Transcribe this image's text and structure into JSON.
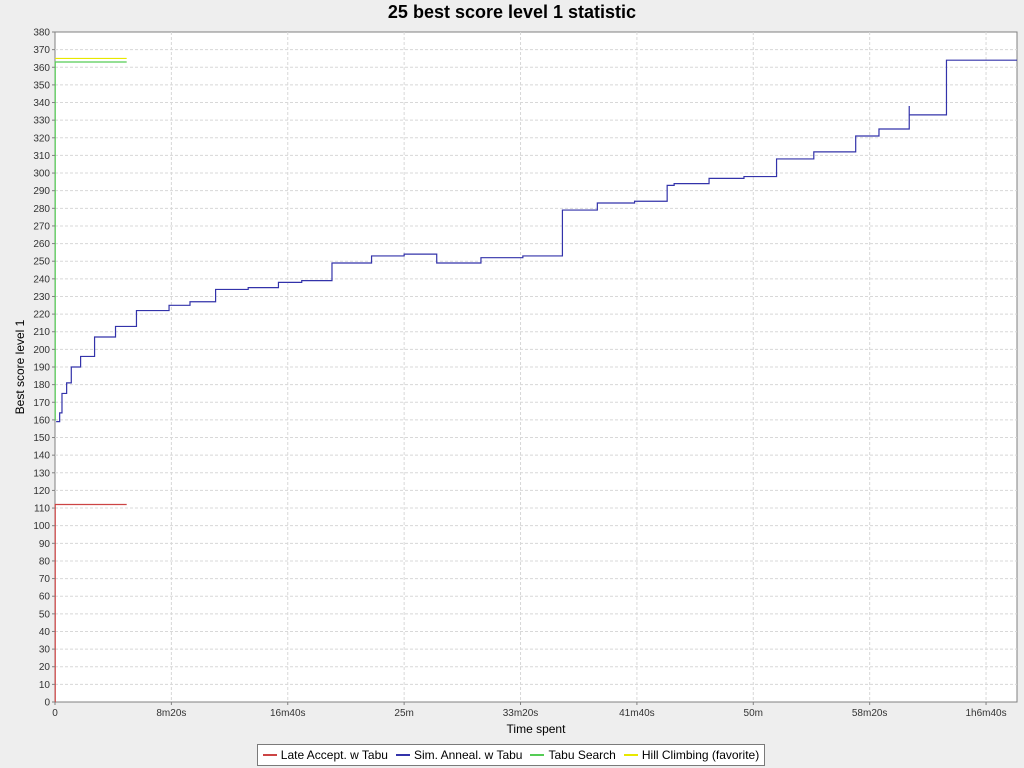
{
  "chart_data": {
    "type": "line",
    "title": "25 best score level 1 statistic",
    "xlabel": "Time spent",
    "ylabel": "Best score level 1",
    "xlim": [
      0,
      4133
    ],
    "ylim": [
      0,
      380
    ],
    "grid": true,
    "legend_position": "bottom",
    "x_ticks": [
      {
        "value": 0,
        "label": "0"
      },
      {
        "value": 500,
        "label": "8m20s"
      },
      {
        "value": 1000,
        "label": "16m40s"
      },
      {
        "value": 1500,
        "label": "25m"
      },
      {
        "value": 2000,
        "label": "33m20s"
      },
      {
        "value": 2500,
        "label": "41m40s"
      },
      {
        "value": 3000,
        "label": "50m"
      },
      {
        "value": 3500,
        "label": "58m20s"
      },
      {
        "value": 4000,
        "label": "1h6m40s"
      }
    ],
    "y_tick_step": 10,
    "series": [
      {
        "name": "Late Accept. w Tabu",
        "color": "#cc4444",
        "step": true,
        "points": [
          [
            0,
            0
          ],
          [
            1,
            112
          ],
          [
            308,
            112
          ]
        ]
      },
      {
        "name": "Sim. Anneal. w Tabu",
        "color": "#3333aa",
        "step": true,
        "points": [
          [
            5,
            159
          ],
          [
            20,
            164
          ],
          [
            30,
            175
          ],
          [
            50,
            181
          ],
          [
            70,
            190
          ],
          [
            110,
            196
          ],
          [
            170,
            207
          ],
          [
            260,
            213
          ],
          [
            350,
            222
          ],
          [
            490,
            225
          ],
          [
            580,
            227
          ],
          [
            690,
            234
          ],
          [
            830,
            235
          ],
          [
            960,
            238
          ],
          [
            1060,
            239
          ],
          [
            1190,
            249
          ],
          [
            1360,
            253
          ],
          [
            1500,
            254
          ],
          [
            1640,
            249
          ],
          [
            1830,
            252
          ],
          [
            2010,
            253
          ],
          [
            2180,
            279
          ],
          [
            2330,
            283
          ],
          [
            2490,
            284
          ],
          [
            2630,
            293
          ],
          [
            2660,
            294
          ],
          [
            2810,
            297
          ],
          [
            2960,
            298
          ],
          [
            3100,
            308
          ],
          [
            3260,
            312
          ],
          [
            3440,
            321
          ],
          [
            3540,
            325
          ],
          [
            3670,
            338
          ],
          [
            3670,
            333
          ],
          [
            3830,
            364
          ],
          [
            4133,
            364
          ]
        ]
      },
      {
        "name": "Tabu Search",
        "color": "#55cc55",
        "step": true,
        "points": [
          [
            0,
            160
          ],
          [
            1,
            363
          ],
          [
            308,
            363
          ]
        ]
      },
      {
        "name": "Hill Climbing (favorite)",
        "color": "#e8e800",
        "step": true,
        "points": [
          [
            0,
            365
          ],
          [
            308,
            365
          ]
        ]
      }
    ]
  }
}
